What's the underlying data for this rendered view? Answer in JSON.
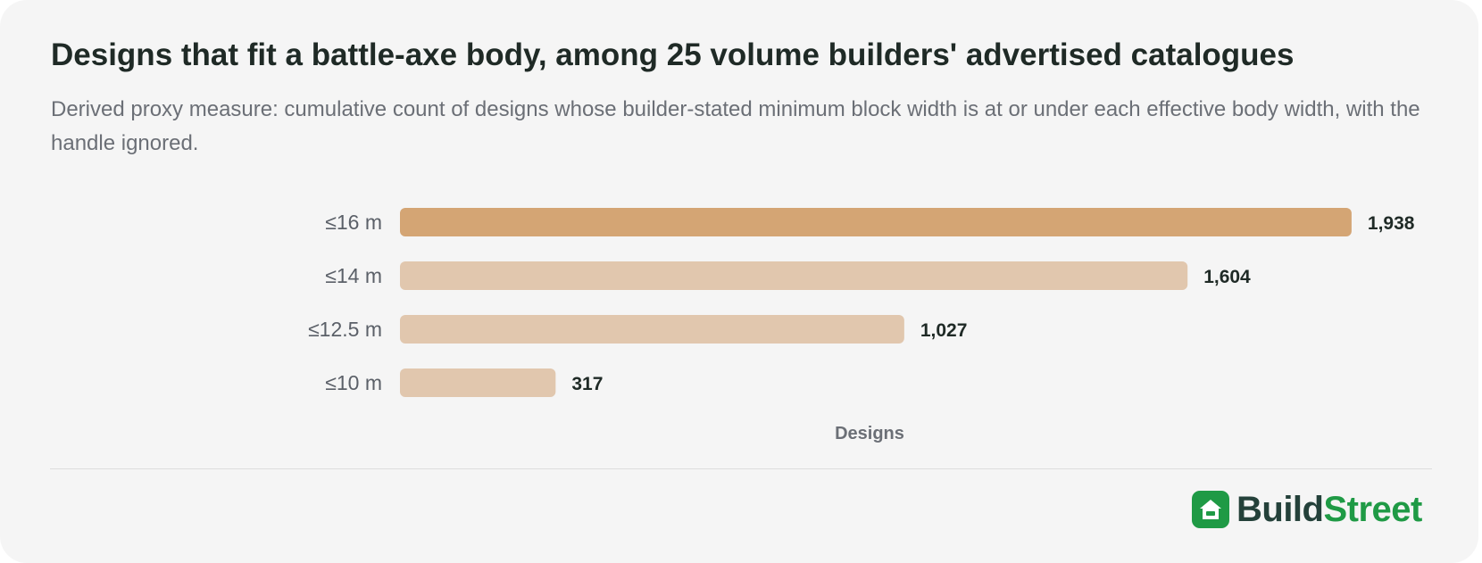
{
  "chart_data": {
    "type": "bar",
    "orientation": "horizontal",
    "title": "Designs that fit a battle-axe body, among 25 volume builders' advertised catalogues",
    "subtitle": "Derived proxy measure: cumulative count of designs whose builder-stated minimum block width is at or under each effective body width, with the handle ignored.",
    "categories": [
      "≤16 m",
      "≤14 m",
      "≤12.5 m",
      "≤10 m"
    ],
    "values": [
      1938,
      1604,
      1027,
      317
    ],
    "value_labels": [
      "1,938",
      "1,604",
      "1,027",
      "317"
    ],
    "highlight_index": 0,
    "xlabel": "Designs",
    "ylabel": "",
    "xlim": [
      0,
      2000
    ],
    "grid": false,
    "legend": "none",
    "colors": {
      "highlight": "#d4a574",
      "bar": "#e1c7ae",
      "label": "#1f2a26",
      "category": "#5b6068",
      "axis_label": "#6b6f76"
    }
  },
  "brand": {
    "part1": "Build",
    "part2": "Street",
    "icon": "house-icon",
    "color": "#1f9a45"
  }
}
